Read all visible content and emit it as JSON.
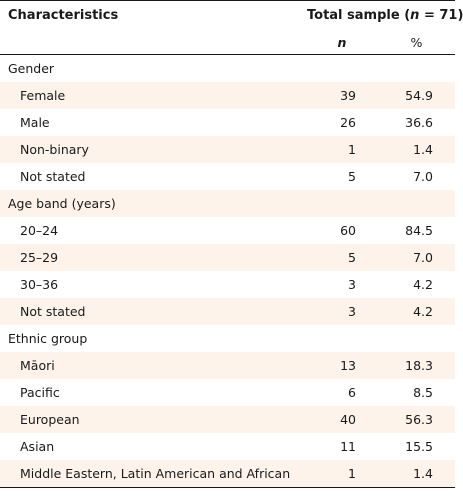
{
  "table": {
    "header": {
      "characteristics": "Characteristics",
      "total_prefix": "Total sample (",
      "total_n": "n",
      "total_suffix": " = 71)",
      "sub_n": "n",
      "sub_pct": "%"
    },
    "groups": [
      {
        "label": "Gender",
        "rows": [
          {
            "label": "Female",
            "n": "39",
            "pct": "54.9"
          },
          {
            "label": "Male",
            "n": "26",
            "pct": "36.6"
          },
          {
            "label": "Non-binary",
            "n": "1",
            "pct": "1.4"
          },
          {
            "label": "Not stated",
            "n": "5",
            "pct": "7.0"
          }
        ]
      },
      {
        "label": "Age band (years)",
        "rows": [
          {
            "label": "20–24",
            "n": "60",
            "pct": "84.5"
          },
          {
            "label": "25–29",
            "n": "5",
            "pct": "7.0"
          },
          {
            "label": "30–36",
            "n": "3",
            "pct": "4.2"
          },
          {
            "label": "Not stated",
            "n": "3",
            "pct": "4.2"
          }
        ]
      },
      {
        "label": "Ethnic group",
        "rows": [
          {
            "label": "Māori",
            "n": "13",
            "pct": "18.3"
          },
          {
            "label": "Pacific",
            "n": "6",
            "pct": "8.5"
          },
          {
            "label": "European",
            "n": "40",
            "pct": "56.3"
          },
          {
            "label": "Asian",
            "n": "11",
            "pct": "15.5"
          },
          {
            "label": "Middle Eastern, Latin American and African",
            "n": "1",
            "pct": "1.4"
          }
        ]
      }
    ],
    "colors": {
      "shade": "#fdf3ea",
      "rule": "#1a1a1a"
    }
  }
}
